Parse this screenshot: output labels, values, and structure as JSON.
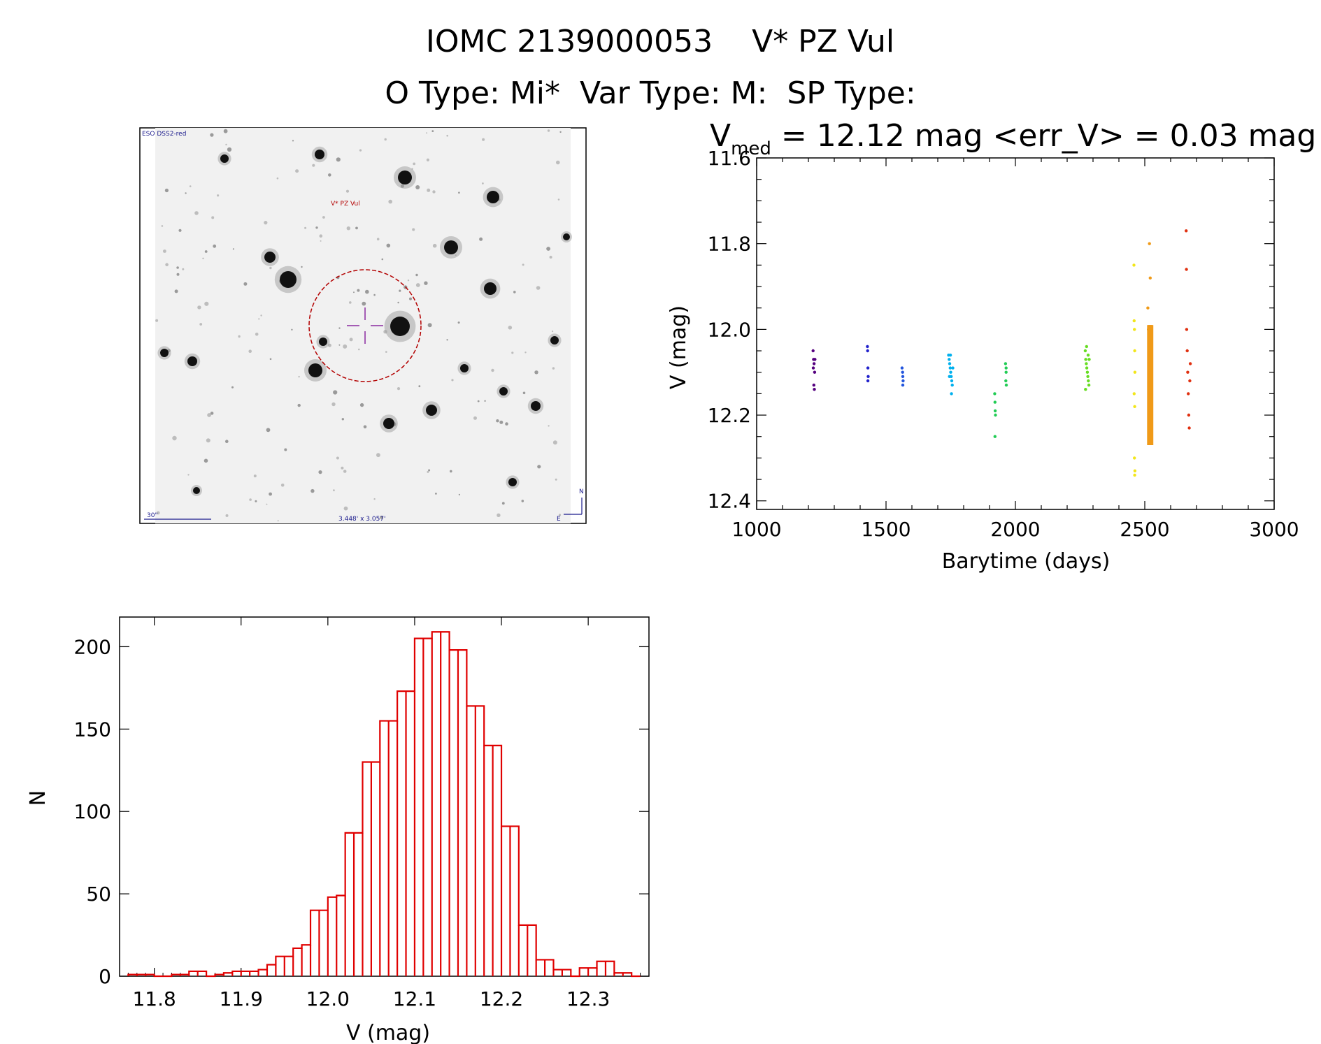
{
  "header": {
    "title": "IOMC 2139000053    V* PZ Vul",
    "subtitle": "O Type: Mi*  Var Type: M:  SP Type:"
  },
  "finder_chart": {
    "survey_label": "ESO DSS2-red",
    "target_label": "V* PZ Vul",
    "scale_label": "30\"",
    "fov_label": "3.448' x 3.057'",
    "north_label": "N",
    "east_label": "E"
  },
  "chart_data": [
    {
      "type": "scatter",
      "title_main": "V",
      "title_sub": "med",
      "title_rest": " = 12.12 mag <err_V> = 0.03 mag",
      "xlabel": "Barytime (days)",
      "ylabel": "V (mag)",
      "xlim": [
        1000,
        3000
      ],
      "ylim": [
        12.42,
        11.6
      ],
      "y_inverted": true,
      "xticks": [
        "1000",
        "1500",
        "2000",
        "2500",
        "3000"
      ],
      "xtick_values": [
        1000,
        1500,
        2000,
        2500,
        3000
      ],
      "yticks": [
        "11.6",
        "11.8",
        "12.0",
        "12.2",
        "12.4"
      ],
      "ytick_values": [
        11.6,
        11.8,
        12.0,
        12.2,
        12.4
      ],
      "series": [
        {
          "name": "epoch-1220",
          "color": "#55007f",
          "points": [
            [
              1218,
              12.05
            ],
            [
              1220,
              12.07
            ],
            [
              1222,
              12.08
            ],
            [
              1219,
              12.09
            ],
            [
              1224,
              12.1
            ],
            [
              1221,
              12.13
            ],
            [
              1223,
              12.14
            ],
            [
              1225,
              12.07
            ]
          ]
        },
        {
          "name": "epoch-1430",
          "color": "#2222cc",
          "points": [
            [
              1428,
              12.04
            ],
            [
              1429,
              12.05
            ],
            [
              1430,
              12.09
            ],
            [
              1431,
              12.11
            ],
            [
              1430,
              12.12
            ]
          ]
        },
        {
          "name": "epoch-1565",
          "color": "#2255dd",
          "points": [
            [
              1562,
              12.09
            ],
            [
              1564,
              12.1
            ],
            [
              1565,
              12.11
            ],
            [
              1566,
              12.12
            ],
            [
              1565,
              12.13
            ]
          ]
        },
        {
          "name": "epoch-1750",
          "color": "#00b0ee",
          "points": [
            [
              1742,
              12.06
            ],
            [
              1744,
              12.07
            ],
            [
              1746,
              12.08
            ],
            [
              1748,
              12.09
            ],
            [
              1750,
              12.1
            ],
            [
              1752,
              12.11
            ],
            [
              1754,
              12.12
            ],
            [
              1756,
              12.13
            ],
            [
              1758,
              12.09
            ],
            [
              1745,
              12.11
            ],
            [
              1753,
              12.15
            ],
            [
              1749,
              12.06
            ]
          ]
        },
        {
          "name": "epoch-1920",
          "color": "#22cc55",
          "points": [
            [
              1920,
              12.15
            ],
            [
              1921,
              12.17
            ],
            [
              1922,
              12.19
            ],
            [
              1923,
              12.2
            ],
            [
              1921,
              12.25
            ],
            [
              1962,
              12.08
            ],
            [
              1964,
              12.1
            ],
            [
              1963,
              12.12
            ],
            [
              1965,
              12.13
            ],
            [
              1964,
              12.09
            ]
          ]
        },
        {
          "name": "epoch-2280",
          "color": "#66dd22",
          "points": [
            [
              2270,
              12.05
            ],
            [
              2272,
              12.07
            ],
            [
              2274,
              12.08
            ],
            [
              2276,
              12.09
            ],
            [
              2278,
              12.1
            ],
            [
              2280,
              12.11
            ],
            [
              2282,
              12.12
            ],
            [
              2284,
              12.13
            ],
            [
              2275,
              12.04
            ],
            [
              2281,
              12.06
            ],
            [
              2285,
              12.07
            ],
            [
              2271,
              12.14
            ]
          ]
        },
        {
          "name": "epoch-2460",
          "color": "#f2e61a",
          "points": [
            [
              2458,
              11.85
            ],
            [
              2459,
              11.98
            ],
            [
              2460,
              12.0
            ],
            [
              2461,
              12.05
            ],
            [
              2462,
              12.1
            ],
            [
              2459,
              12.15
            ],
            [
              2461,
              12.18
            ],
            [
              2460,
              12.3
            ],
            [
              2462,
              12.33
            ],
            [
              2461,
              12.34
            ]
          ]
        },
        {
          "name": "epoch-2520",
          "color": "#f09a18",
          "points": [
            [
              2512,
              11.95
            ],
            [
              2514,
              12.0
            ],
            [
              2516,
              12.05
            ],
            [
              2518,
              12.1
            ],
            [
              2520,
              12.15
            ],
            [
              2522,
              12.2
            ],
            [
              2524,
              12.25
            ],
            [
              2518,
              11.8
            ],
            [
              2521,
              11.88
            ]
          ]
        },
        {
          "name": "epoch-2670",
          "color": "#e03010",
          "points": [
            [
              2660,
              11.77
            ],
            [
              2661,
              11.86
            ],
            [
              2662,
              12.0
            ],
            [
              2664,
              12.05
            ],
            [
              2666,
              12.1
            ],
            [
              2668,
              12.15
            ],
            [
              2670,
              12.2
            ],
            [
              2672,
              12.23
            ],
            [
              2674,
              12.12
            ],
            [
              2676,
              12.08
            ]
          ]
        }
      ]
    },
    {
      "type": "bar",
      "subtype": "histogram",
      "xlabel": "V (mag)",
      "ylabel": "N",
      "xlim": [
        11.76,
        12.37
      ],
      "ylim": [
        0,
        218
      ],
      "xticks": [
        "11.8",
        "11.9",
        "12.0",
        "12.1",
        "12.2",
        "12.3"
      ],
      "xtick_values": [
        11.8,
        11.9,
        12.0,
        12.1,
        12.2,
        12.3
      ],
      "yticks": [
        "0",
        "50",
        "100",
        "150",
        "200"
      ],
      "ytick_values": [
        0,
        50,
        100,
        150,
        200
      ],
      "bin_edges": [
        11.77,
        11.78,
        11.79,
        11.8,
        11.81,
        11.82,
        11.83,
        11.84,
        11.85,
        11.86,
        11.87,
        11.88,
        11.89,
        11.9,
        11.91,
        11.92,
        11.93,
        11.94,
        11.95,
        11.96,
        11.97,
        11.98,
        11.99,
        12.0,
        12.01,
        12.02,
        12.03,
        12.04,
        12.05,
        12.06,
        12.07,
        12.08,
        12.09,
        12.1,
        12.11,
        12.12,
        12.13,
        12.14,
        12.15,
        12.16,
        12.17,
        12.18,
        12.19,
        12.2,
        12.21,
        12.22,
        12.23,
        12.24,
        12.25,
        12.26,
        12.27,
        12.28,
        12.29,
        12.3,
        12.31,
        12.32,
        12.33,
        12.34,
        12.35,
        12.36
      ],
      "values": [
        1,
        1,
        1,
        0,
        0,
        1,
        1,
        3,
        3,
        0,
        1,
        2,
        3,
        3,
        3,
        4,
        7,
        12,
        12,
        17,
        19,
        40,
        40,
        48,
        49,
        87,
        87,
        130,
        130,
        155,
        155,
        173,
        173,
        205,
        205,
        209,
        209,
        198,
        198,
        164,
        164,
        140,
        140,
        91,
        91,
        31,
        31,
        10,
        10,
        4,
        4,
        0,
        5,
        5,
        9,
        9,
        2,
        2,
        0
      ]
    }
  ]
}
